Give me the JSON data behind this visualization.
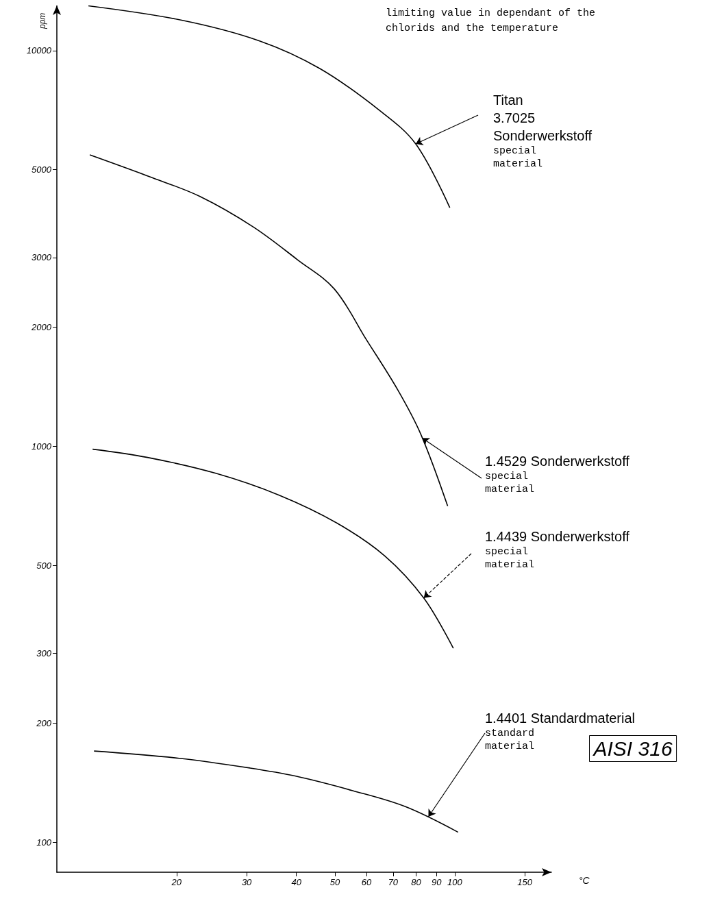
{
  "chart_data": {
    "type": "line",
    "title": "limiting value in dependant of the\nchlorids and the temperature",
    "xlabel": "°C",
    "ylabel": "ppm",
    "log": "xy",
    "grid": false,
    "marker": "none",
    "line_style": "solid",
    "xlim": [
      10,
      175
    ],
    "xticks": [
      20,
      30,
      40,
      50,
      60,
      70,
      80,
      90,
      100,
      150
    ],
    "ylim": [
      84,
      13000
    ],
    "yticks": [
      100,
      200,
      300,
      500,
      1000,
      2000,
      3000,
      5000,
      10000
    ],
    "series": [
      {
        "color": "#000000",
        "x": [
          12.0,
          20.7,
          32.4,
          45.8,
          64.4,
          79.8,
          97.2
        ],
        "values": [
          12970,
          11920,
          10570,
          9010,
          7090,
          5810,
          4010
        ]
      },
      {
        "color": "#000000",
        "x": [
          12.1,
          17.4,
          22.9,
          31.1,
          40.3,
          49.8,
          60.0,
          71.9,
          82.3,
          96.0
        ],
        "values": [
          5450,
          4770,
          4280,
          3590,
          2960,
          2500,
          1860,
          1390,
          1070,
          707
        ]
      },
      {
        "color": "#000000",
        "x": [
          12.3,
          16.9,
          25.1,
          36.2,
          50.6,
          66.7,
          83.6,
          99.2
        ],
        "values": [
          984,
          938,
          855,
          753,
          640,
          529,
          414,
          309
        ]
      },
      {
        "color": "#000000",
        "x": [
          12.4,
          20.3,
          30.6,
          39.7,
          55.4,
          75.2,
          102
        ],
        "values": [
          170,
          163,
          154,
          147,
          135,
          123,
          106
        ]
      }
    ],
    "annotations": [
      {
        "text": "Titan\n3.7025\nSonderwerkstoff\nspecial\nmaterial",
        "x": 79.8,
        "y": 5810
      },
      {
        "text": "1.4529 Sonderwerkstoff\nspecial\nmaterial",
        "x": 82.8,
        "y": 1050
      },
      {
        "text": "1.4439 Sonderwerkstoff\nspecial\nmaterial",
        "x": 83.6,
        "y": 414
      },
      {
        "text": "1.4401 Standardmaterial\nstandard\nmaterial",
        "x": 85.9,
        "y": 116
      },
      "AISI 316"
    ]
  }
}
